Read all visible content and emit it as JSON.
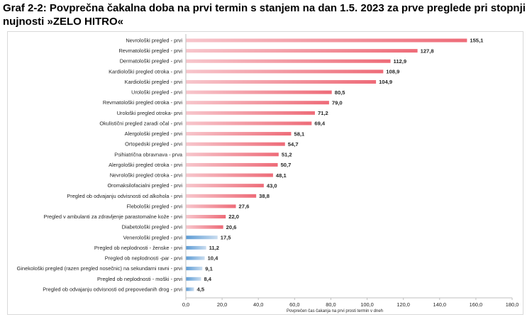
{
  "title": "Graf 2-2: Povprečna čakalna doba na prvi termin s stanjem na dan 1.5. 2023 za prve preglede pri stopnji nujnosti »ZELO HITRO«",
  "colors": {
    "bar_high_start": "#f7c6cc",
    "bar_high_end": "#ee6b78",
    "bar_low_start": "#5b9bd5",
    "bar_low_end": "#c9dcef",
    "axis": "#bfbfbf",
    "text": "#262626"
  },
  "chart_data": {
    "type": "bar",
    "orientation": "horizontal",
    "title": "",
    "xlabel": "Povprečen čas čakanja na prvi prosti termin v dneh",
    "ylabel": "",
    "xlim": [
      0,
      180
    ],
    "xticks": [
      0,
      20,
      40,
      60,
      80,
      100,
      120,
      140,
      160,
      180
    ],
    "xtick_labels": [
      "0,0",
      "20,0",
      "40,0",
      "60,0",
      "80,0",
      "100,0",
      "120,0",
      "140,0",
      "160,0",
      "180,0"
    ],
    "grid": false,
    "legend": "none",
    "categories": [
      "Nevrološki pregled - prvi",
      "Revmatološki pregled - prvi",
      "Dermatološki pregled - prvi",
      "Kardiološki pregled otroka - prvi",
      "Kardiološki pregled - prvi",
      "Urološki pregled - prvi",
      "Revmatološki pregled otroka - prvi",
      "Urološki pregled otroka- prvi",
      "Okulistični pregled zaradi očal - prvi",
      "Alergološki pregled - prvi",
      "Ortopedski pregled - prvi",
      "Psihiatrična obravnava  - prva",
      "Alergološki pregled otroka - prvi",
      "Nevrološki pregled otroka - prvi",
      "Oromaksilofacialni pregled - prvi",
      "Pregled ob odvajanju odvisnosti od alkohola - prvi",
      "Flebološki pregled - prvi",
      "Pregled v ambulanti za zdravljenje parastomalne kože - prvi",
      "Diabetološki pregled - prvi",
      "Venerološki pregled - prvi",
      "Pregled ob neplodnosti - ženske - prvi",
      "Pregled ob neplodnosti -par - prvi",
      "Ginekološki pregled (razen pregled nosečnic) na sekundarni ravni - prvi",
      "Pregled ob neplodnosti - moški - prvi",
      "Pregled ob odvajanju odvisnosti od prepovedanih drog - prvi"
    ],
    "values": [
      155.1,
      127.8,
      112.9,
      108.9,
      104.9,
      80.5,
      79.0,
      71.2,
      69.4,
      58.1,
      54.7,
      51.2,
      50.7,
      48.1,
      43.0,
      38.8,
      27.6,
      22.0,
      20.6,
      17.5,
      11.2,
      10.4,
      9.1,
      8.4,
      4.5
    ],
    "value_labels": [
      "155,1",
      "127,8",
      "112,9",
      "108,9",
      "104,9",
      "80,5",
      "79,0",
      "71,2",
      "69,4",
      "58,1",
      "54,7",
      "51,2",
      "50,7",
      "48,1",
      "43,0",
      "38,8",
      "27,6",
      "22,0",
      "20,6",
      "17,5",
      "11,2",
      "10,4",
      "9,1",
      "8,4",
      "4,5"
    ]
  }
}
